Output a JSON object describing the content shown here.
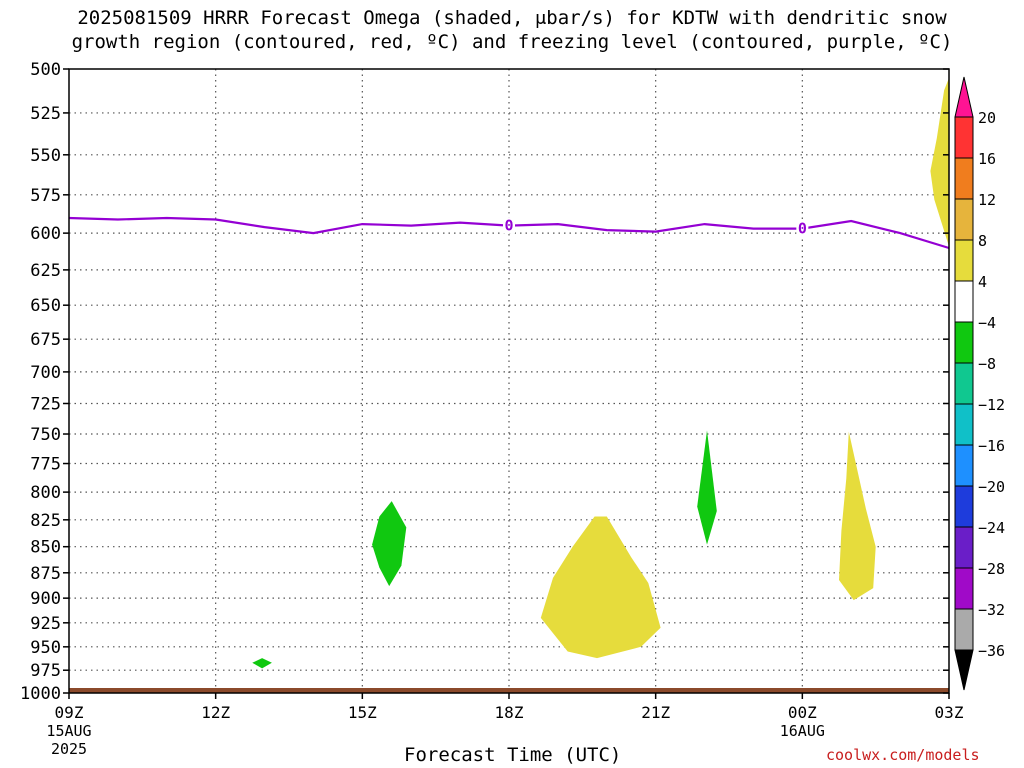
{
  "title": {
    "line1": "2025081509 HRRR Forecast Omega (shaded, μbar/s) for KDTW with dendritic snow",
    "line2": "growth region (contoured, red, ºC) and freezing level (contoured, purple, ºC)"
  },
  "footer": {
    "xlabel": "Forecast Time (UTC)",
    "credit": "coolwx.com/models"
  },
  "chart_data": {
    "type": "heatmap",
    "title": "2025081509 HRRR Forecast Omega (shaded, μbar/s) for KDTW with dendritic snow growth region (contoured, red, ºC) and freezing level (contoured, purple, ºC)",
    "xlabel": "Forecast Time (UTC)",
    "ylabel": "",
    "x_unit": "hours since 09Z 15AUG 2025",
    "xlim": [
      0,
      18
    ],
    "ylim": [
      1000,
      500
    ],
    "grid": true,
    "x_ticks": [
      {
        "x": 0,
        "label": "09Z",
        "sub1": "15AUG",
        "sub2": "2025"
      },
      {
        "x": 3,
        "label": "12Z"
      },
      {
        "x": 6,
        "label": "15Z"
      },
      {
        "x": 9,
        "label": "18Z"
      },
      {
        "x": 12,
        "label": "21Z"
      },
      {
        "x": 15,
        "label": "00Z",
        "sub1": "16AUG"
      },
      {
        "x": 18,
        "label": "03Z"
      }
    ],
    "y_ticks": [
      500,
      525,
      550,
      575,
      600,
      625,
      650,
      675,
      700,
      725,
      750,
      775,
      800,
      825,
      850,
      875,
      900,
      925,
      950,
      975,
      1000
    ],
    "colorbar": {
      "labels": [
        "20",
        "16",
        "12",
        "8",
        "4",
        "−4",
        "−8",
        "−12",
        "−16",
        "−20",
        "−24",
        "−28",
        "−32",
        "−36"
      ],
      "colors": [
        "#ff1493",
        "#ff3333",
        "#f07d1e",
        "#e6b43c",
        "#e6dc3c",
        "#ffffff",
        "#10c810",
        "#10c890",
        "#10c0c8",
        "#1e90ff",
        "#1e3cdc",
        "#6a1ec8",
        "#a00ac8",
        "#aaaaaa",
        "#000000"
      ]
    },
    "freezing_level": {
      "label": "0",
      "color": "#9400d3",
      "label_x": [
        9,
        15
      ],
      "x": [
        0,
        1,
        2,
        3,
        4,
        5,
        6,
        7,
        8,
        9,
        10,
        11,
        12,
        13,
        14,
        15,
        16,
        17,
        18
      ],
      "y": [
        590,
        591,
        590,
        591,
        596,
        600,
        594,
        595,
        593,
        595,
        594,
        598,
        599,
        594,
        597,
        597,
        592,
        600,
        610
      ]
    },
    "omega_regions": [
      {
        "color": "#10c810",
        "points": [
          [
            6.6,
            808
          ],
          [
            6.9,
            832
          ],
          [
            6.8,
            868
          ],
          [
            6.55,
            888
          ],
          [
            6.35,
            870
          ],
          [
            6.2,
            848
          ],
          [
            6.35,
            822
          ]
        ]
      },
      {
        "color": "#10c810",
        "points": [
          [
            3.95,
            962
          ],
          [
            4.15,
            967
          ],
          [
            3.95,
            973
          ],
          [
            3.75,
            967
          ]
        ]
      },
      {
        "color": "#10c810",
        "points": [
          [
            13.05,
            747
          ],
          [
            13.25,
            817
          ],
          [
            13.05,
            848
          ],
          [
            12.85,
            813
          ]
        ]
      },
      {
        "color": "#e6dc3c",
        "points": [
          [
            11.0,
            822
          ],
          [
            11.5,
            860
          ],
          [
            11.85,
            885
          ],
          [
            12.1,
            930
          ],
          [
            11.7,
            950
          ],
          [
            10.8,
            962
          ],
          [
            10.2,
            955
          ],
          [
            9.65,
            920
          ],
          [
            9.9,
            880
          ],
          [
            10.3,
            850
          ],
          [
            10.75,
            822
          ]
        ]
      },
      {
        "color": "#e6dc3c",
        "points": [
          [
            15.95,
            748
          ],
          [
            16.3,
            815
          ],
          [
            16.5,
            850
          ],
          [
            16.45,
            890
          ],
          [
            16.05,
            902
          ],
          [
            15.75,
            882
          ],
          [
            15.8,
            835
          ],
          [
            15.9,
            788
          ]
        ]
      },
      {
        "color": "#e6dc3c",
        "points": [
          [
            18.0,
            505
          ],
          [
            18.0,
            609
          ],
          [
            17.7,
            578
          ],
          [
            17.62,
            560
          ],
          [
            17.75,
            540
          ],
          [
            17.9,
            512
          ]
        ]
      }
    ],
    "surface_band": {
      "color": "#8b4a2b",
      "pressure": 1000
    }
  }
}
